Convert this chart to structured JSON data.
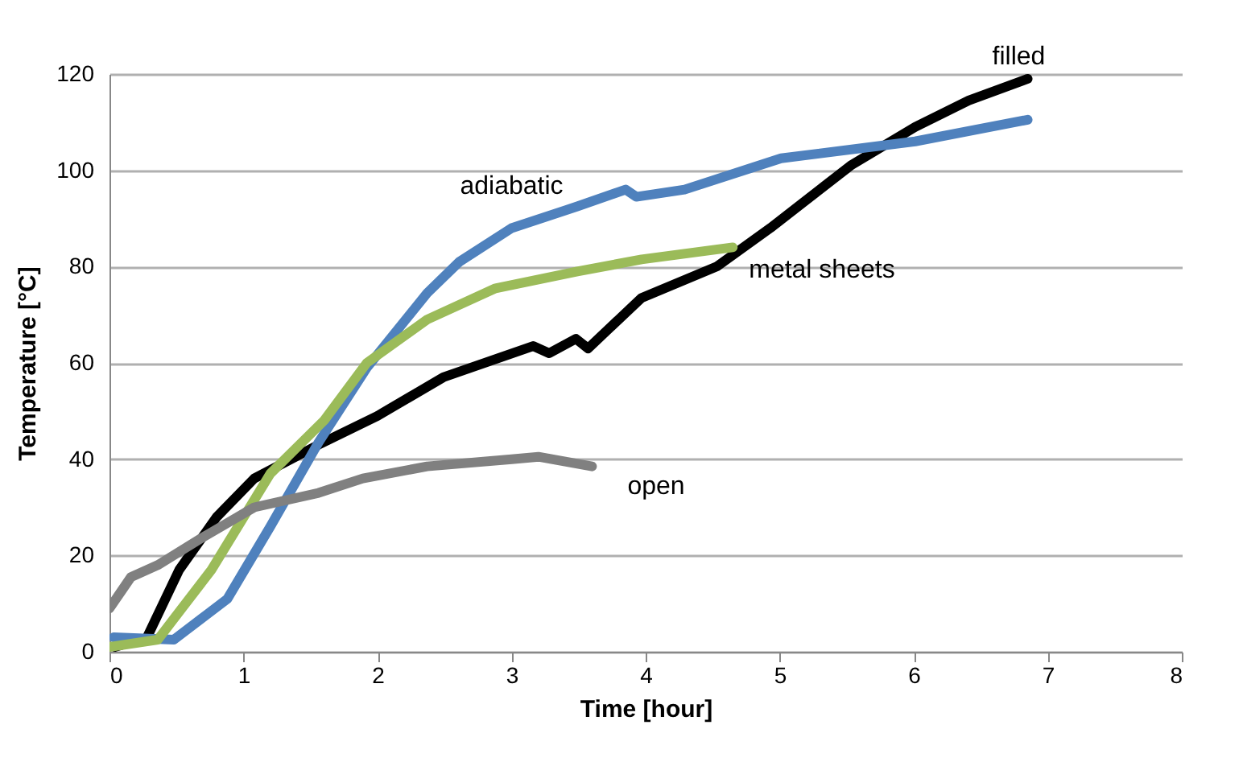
{
  "chart_data": {
    "type": "line",
    "xlabel": "Time [hour]",
    "ylabel": "Temperature [°C]",
    "xlim": [
      0,
      8
    ],
    "ylim": [
      0,
      120
    ],
    "xticks": [
      0,
      1,
      2,
      3,
      4,
      5,
      6,
      7,
      8
    ],
    "yticks": [
      0,
      20,
      40,
      60,
      80,
      100,
      120
    ],
    "grid": "y",
    "legend": false,
    "marker": "none",
    "line_style": "solid",
    "series": [
      {
        "name": "filled",
        "color": "#000000",
        "x": [
          0.04,
          0.28,
          0.52,
          0.8,
          1.08,
          1.56,
          2.0,
          2.49,
          3.16,
          3.28,
          3.48,
          3.57,
          3.97,
          4.53,
          4.93,
          5.53,
          6.01,
          6.41,
          6.85
        ],
        "values": [
          1,
          3,
          17,
          28,
          36,
          43,
          49,
          57,
          63.5,
          62,
          65,
          63,
          73.5,
          80,
          88,
          101,
          109,
          114.5,
          119
        ]
      },
      {
        "name": "adiabatic",
        "color": "#4f81bd",
        "x": [
          0.03,
          0.48,
          0.88,
          1.2,
          1.56,
          1.92,
          2.37,
          2.61,
          3.0,
          3.49,
          3.85,
          3.93,
          4.29,
          5.01,
          6.01,
          6.85
        ],
        "values": [
          3,
          2.5,
          11,
          26,
          43.5,
          59,
          74.5,
          81,
          88,
          92.5,
          96,
          94.5,
          96,
          102.5,
          106,
          110.5
        ]
      },
      {
        "name": "metal sheets",
        "color": "#9bbb59",
        "x": [
          0.0,
          0.36,
          0.76,
          1.2,
          1.6,
          1.92,
          2.37,
          2.88,
          3.49,
          3.97,
          4.65
        ],
        "values": [
          1,
          2.5,
          17,
          37,
          48,
          60,
          69,
          75.5,
          79,
          81.5,
          84
        ]
      },
      {
        "name": "open",
        "color": "#808080",
        "x": [
          0.0,
          0.16,
          0.36,
          0.68,
          1.08,
          1.56,
          1.89,
          2.37,
          3.0,
          3.2,
          3.6
        ],
        "values": [
          9,
          15.5,
          18,
          23.5,
          30,
          33,
          36,
          38.5,
          40,
          40.5,
          38.5
        ]
      }
    ]
  }
}
